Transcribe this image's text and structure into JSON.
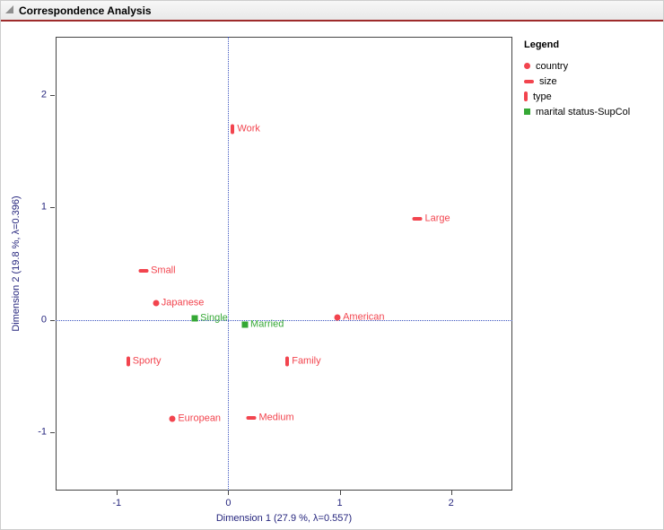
{
  "window": {
    "title": "Correspondence Analysis"
  },
  "chart_data": {
    "type": "scatter",
    "title": "Correspondence Analysis",
    "xlabel": "Dimension 1 (27.9 %, λ=0.557)",
    "ylabel": "Dimension 2 (19.8 %, λ=0.396)",
    "xlim": [
      -1.55,
      2.55
    ],
    "ylim": [
      -1.52,
      2.52
    ],
    "xticks": [
      -1,
      0,
      1,
      2
    ],
    "yticks": [
      -1,
      0,
      1,
      2
    ],
    "grid": false,
    "reference_lines": {
      "x": 0,
      "y": 0,
      "style": "dotted"
    },
    "legend_position": "right",
    "series": [
      {
        "name": "country",
        "marker": "circle",
        "color": "#F2444E",
        "points": [
          {
            "label": "Japanese",
            "x": -0.65,
            "y": 0.15
          },
          {
            "label": "American",
            "x": 0.98,
            "y": 0.02
          },
          {
            "label": "European",
            "x": -0.5,
            "y": -0.88
          }
        ]
      },
      {
        "name": "size",
        "marker": "hbar",
        "color": "#F2444E",
        "points": [
          {
            "label": "Large",
            "x": 1.7,
            "y": 0.9
          },
          {
            "label": "Small",
            "x": -0.76,
            "y": 0.44
          },
          {
            "label": "Medium",
            "x": 0.21,
            "y": -0.87
          }
        ]
      },
      {
        "name": "type",
        "marker": "vbar",
        "color": "#F2444E",
        "points": [
          {
            "label": "Work",
            "x": 0.04,
            "y": 1.7
          },
          {
            "label": "Sporty",
            "x": -0.9,
            "y": -0.37
          },
          {
            "label": "Family",
            "x": 0.53,
            "y": -0.37
          }
        ]
      },
      {
        "name": "marital status-SupCol",
        "marker": "square",
        "color": "#35A835",
        "points": [
          {
            "label": "Single",
            "x": -0.3,
            "y": 0.01
          },
          {
            "label": "Married",
            "x": 0.15,
            "y": -0.04
          }
        ]
      }
    ]
  },
  "legend": {
    "title": "Legend",
    "items": [
      {
        "label": "country",
        "marker": "circle",
        "color": "#F2444E"
      },
      {
        "label": "size",
        "marker": "hbar",
        "color": "#F2444E"
      },
      {
        "label": "type",
        "marker": "vbar",
        "color": "#F2444E"
      },
      {
        "label": "marital status-SupCol",
        "marker": "square",
        "color": "#35A835"
      }
    ]
  },
  "colors": {
    "accent_red": "#F2444E",
    "accent_green": "#35A835",
    "ref_line": "#3D55C0",
    "axis_text": "#26267E",
    "title_bar_line": "#9E2B2B"
  }
}
